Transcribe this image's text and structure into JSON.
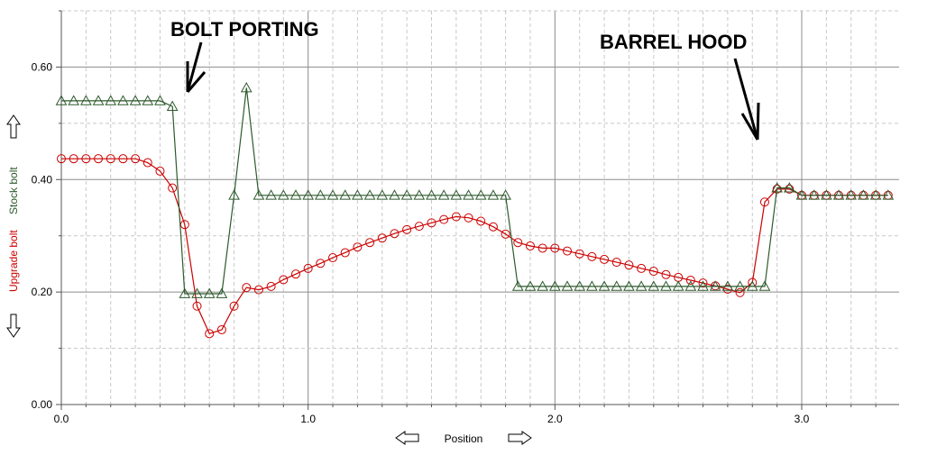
{
  "chart_data": {
    "type": "line",
    "title": "",
    "xlabel": "Position",
    "ylabel_series": [
      "Upgrade bolt",
      "Stock bolt"
    ],
    "xlim": [
      0,
      3.4
    ],
    "ylim": [
      0,
      0.7
    ],
    "x_ticks": [
      0,
      1,
      2,
      3
    ],
    "x_tick_labels": [
      "0.0",
      "1.0",
      "2.0",
      "3.0"
    ],
    "y_ticks": [
      0,
      0.2,
      0.4,
      0.6
    ],
    "y_tick_labels": [
      "0.00",
      "0.20",
      "0.40",
      "0.60"
    ],
    "grid": true,
    "annotations": [
      {
        "text": "BOLT PORTING",
        "x": 0.5,
        "y": 0.55
      },
      {
        "text": "BARREL HOOD",
        "x": 2.82,
        "y": 0.47
      }
    ],
    "series": [
      {
        "name": "Upgrade bolt",
        "color": "#cc0000",
        "marker": "circle",
        "points": [
          [
            0.0,
            0.437
          ],
          [
            0.05,
            0.437
          ],
          [
            0.1,
            0.437
          ],
          [
            0.15,
            0.437
          ],
          [
            0.2,
            0.437
          ],
          [
            0.25,
            0.437
          ],
          [
            0.3,
            0.437
          ],
          [
            0.35,
            0.43
          ],
          [
            0.4,
            0.415
          ],
          [
            0.45,
            0.385
          ],
          [
            0.5,
            0.32
          ],
          [
            0.55,
            0.175
          ],
          [
            0.6,
            0.126
          ],
          [
            0.65,
            0.133
          ],
          [
            0.7,
            0.175
          ],
          [
            0.75,
            0.208
          ],
          [
            0.8,
            0.204
          ],
          [
            0.85,
            0.21
          ],
          [
            0.9,
            0.222
          ],
          [
            0.95,
            0.232
          ],
          [
            1.0,
            0.242
          ],
          [
            1.05,
            0.251
          ],
          [
            1.1,
            0.261
          ],
          [
            1.15,
            0.27
          ],
          [
            1.2,
            0.28
          ],
          [
            1.25,
            0.288
          ],
          [
            1.3,
            0.296
          ],
          [
            1.35,
            0.304
          ],
          [
            1.4,
            0.311
          ],
          [
            1.45,
            0.317
          ],
          [
            1.5,
            0.323
          ],
          [
            1.55,
            0.329
          ],
          [
            1.6,
            0.334
          ],
          [
            1.65,
            0.332
          ],
          [
            1.7,
            0.326
          ],
          [
            1.75,
            0.316
          ],
          [
            1.8,
            0.303
          ],
          [
            1.85,
            0.288
          ],
          [
            1.9,
            0.282
          ],
          [
            1.95,
            0.278
          ],
          [
            2.0,
            0.278
          ],
          [
            2.05,
            0.273
          ],
          [
            2.1,
            0.268
          ],
          [
            2.15,
            0.263
          ],
          [
            2.2,
            0.258
          ],
          [
            2.25,
            0.253
          ],
          [
            2.3,
            0.248
          ],
          [
            2.35,
            0.242
          ],
          [
            2.4,
            0.237
          ],
          [
            2.45,
            0.231
          ],
          [
            2.5,
            0.226
          ],
          [
            2.55,
            0.221
          ],
          [
            2.6,
            0.216
          ],
          [
            2.65,
            0.211
          ],
          [
            2.7,
            0.205
          ],
          [
            2.75,
            0.199
          ],
          [
            2.8,
            0.217
          ],
          [
            2.85,
            0.36
          ],
          [
            2.9,
            0.383
          ],
          [
            2.95,
            0.383
          ],
          [
            3.0,
            0.372
          ],
          [
            3.05,
            0.372
          ],
          [
            3.1,
            0.372
          ],
          [
            3.15,
            0.372
          ],
          [
            3.2,
            0.372
          ],
          [
            3.25,
            0.372
          ],
          [
            3.3,
            0.372
          ],
          [
            3.35,
            0.372
          ]
        ]
      },
      {
        "name": "Stock bolt",
        "color": "#2d5a2d",
        "marker": "triangle",
        "points": [
          [
            0.0,
            0.54
          ],
          [
            0.05,
            0.54
          ],
          [
            0.1,
            0.54
          ],
          [
            0.15,
            0.54
          ],
          [
            0.2,
            0.54
          ],
          [
            0.25,
            0.54
          ],
          [
            0.3,
            0.54
          ],
          [
            0.35,
            0.54
          ],
          [
            0.4,
            0.54
          ],
          [
            0.45,
            0.53
          ],
          [
            0.5,
            0.197
          ],
          [
            0.55,
            0.197
          ],
          [
            0.6,
            0.197
          ],
          [
            0.65,
            0.197
          ],
          [
            0.7,
            0.372
          ],
          [
            0.75,
            0.563
          ],
          [
            0.8,
            0.372
          ],
          [
            0.85,
            0.372
          ],
          [
            0.9,
            0.372
          ],
          [
            0.95,
            0.372
          ],
          [
            1.0,
            0.372
          ],
          [
            1.05,
            0.372
          ],
          [
            1.1,
            0.372
          ],
          [
            1.15,
            0.372
          ],
          [
            1.2,
            0.372
          ],
          [
            1.25,
            0.372
          ],
          [
            1.3,
            0.372
          ],
          [
            1.35,
            0.372
          ],
          [
            1.4,
            0.372
          ],
          [
            1.45,
            0.372
          ],
          [
            1.5,
            0.372
          ],
          [
            1.55,
            0.372
          ],
          [
            1.6,
            0.372
          ],
          [
            1.65,
            0.372
          ],
          [
            1.7,
            0.372
          ],
          [
            1.75,
            0.372
          ],
          [
            1.8,
            0.372
          ],
          [
            1.85,
            0.21
          ],
          [
            1.9,
            0.21
          ],
          [
            1.95,
            0.21
          ],
          [
            2.0,
            0.21
          ],
          [
            2.05,
            0.21
          ],
          [
            2.1,
            0.21
          ],
          [
            2.15,
            0.21
          ],
          [
            2.2,
            0.21
          ],
          [
            2.25,
            0.21
          ],
          [
            2.3,
            0.21
          ],
          [
            2.35,
            0.21
          ],
          [
            2.4,
            0.21
          ],
          [
            2.45,
            0.21
          ],
          [
            2.5,
            0.21
          ],
          [
            2.55,
            0.21
          ],
          [
            2.6,
            0.21
          ],
          [
            2.65,
            0.21
          ],
          [
            2.7,
            0.21
          ],
          [
            2.75,
            0.21
          ],
          [
            2.8,
            0.21
          ],
          [
            2.85,
            0.21
          ],
          [
            2.9,
            0.385
          ],
          [
            2.95,
            0.385
          ],
          [
            3.0,
            0.372
          ],
          [
            3.05,
            0.372
          ],
          [
            3.1,
            0.372
          ],
          [
            3.15,
            0.372
          ],
          [
            3.2,
            0.372
          ],
          [
            3.25,
            0.372
          ],
          [
            3.3,
            0.372
          ],
          [
            3.35,
            0.372
          ]
        ]
      }
    ]
  },
  "icons": {
    "y_up": "arrow-up-icon",
    "y_down": "arrow-down-icon",
    "x_left": "arrow-left-icon",
    "x_right": "arrow-right-icon"
  }
}
